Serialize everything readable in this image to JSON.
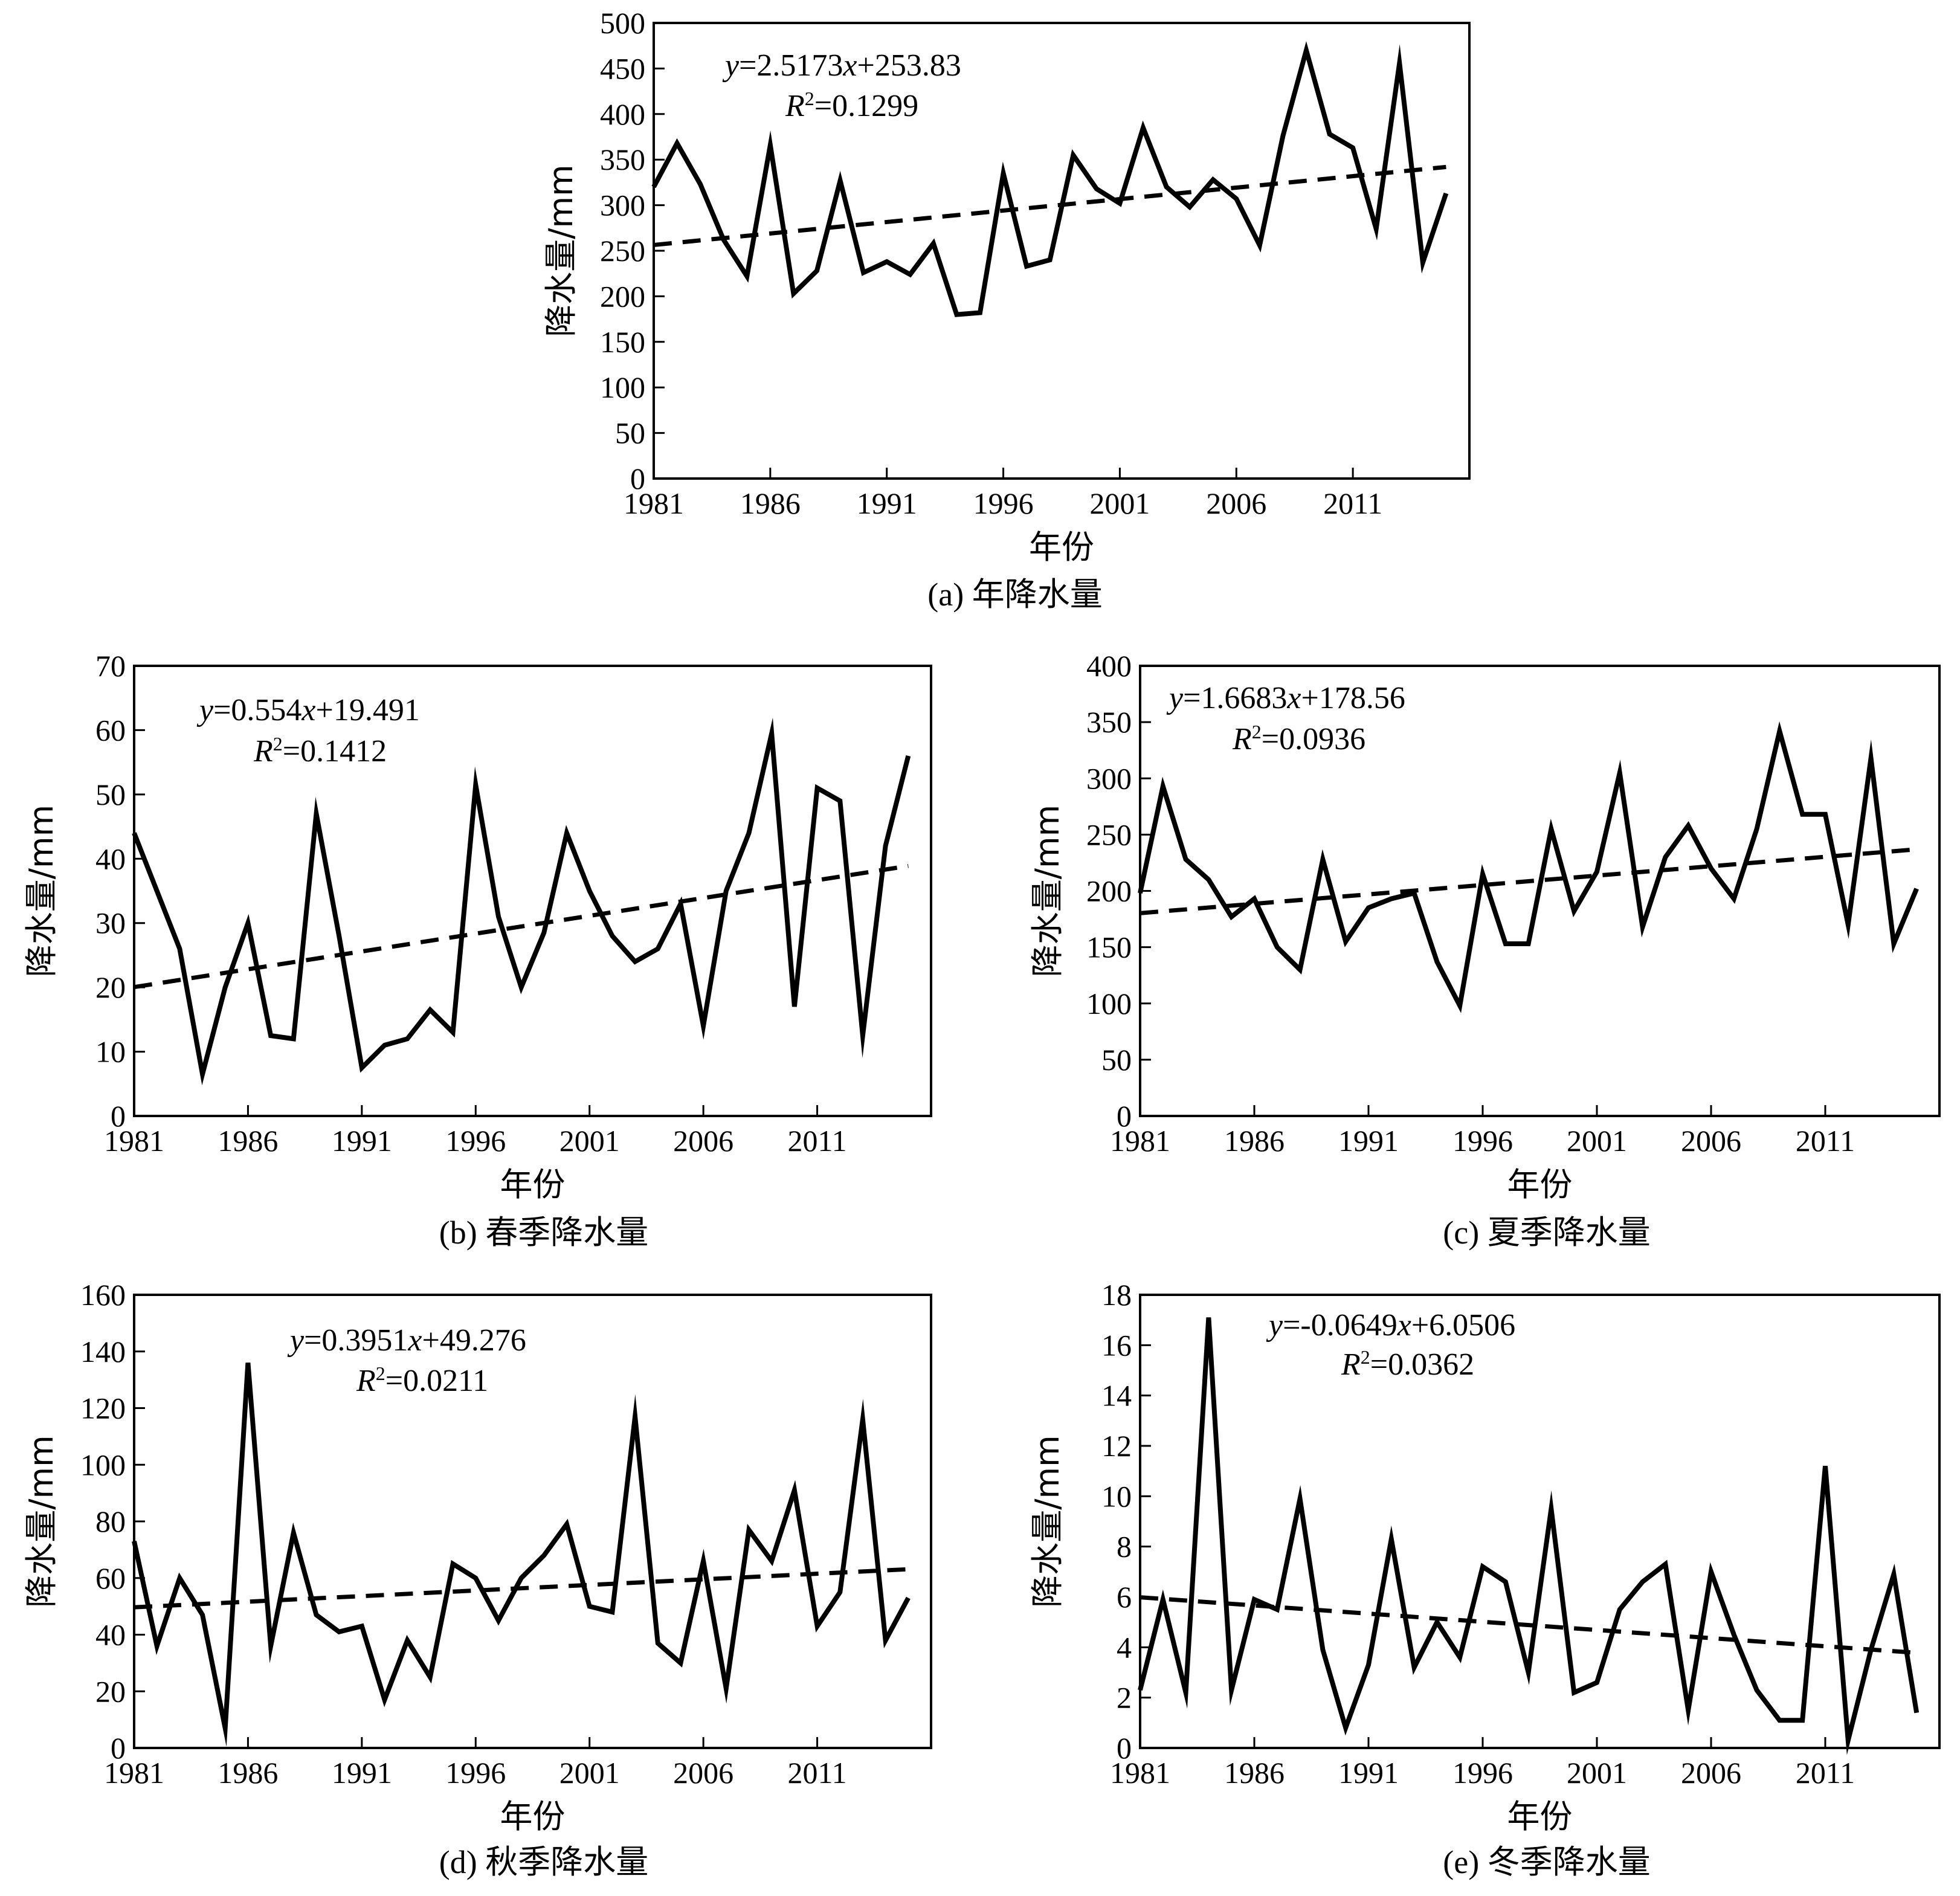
{
  "chart_data": [
    {
      "id": "a",
      "type": "line",
      "caption": "(a) 年降水量",
      "xlabel": "年份",
      "ylabel": "降水量/mm",
      "xlim": [
        1981,
        2016
      ],
      "xticks": [
        1981,
        1986,
        1991,
        1996,
        2001,
        2006,
        2011
      ],
      "ylim": [
        0,
        500
      ],
      "yticks": [
        0,
        50,
        100,
        150,
        200,
        250,
        300,
        350,
        400,
        450,
        500
      ],
      "equation": {
        "y": "y",
        "eq1": "=2.5173",
        "x": "x",
        "eq2": "+253.83",
        "r": "R",
        "sup": "2",
        "r2": "=0.1299"
      },
      "trend": {
        "slope": 2.5173,
        "intercept": 253.83
      },
      "series": [
        {
          "x": [
            1981,
            1982,
            1983,
            1984,
            1985,
            1986,
            1987,
            1988,
            1989,
            1990,
            1991,
            1992,
            1993,
            1994,
            1995,
            1996,
            1997,
            1998,
            1999,
            2000,
            2001,
            2002,
            2003,
            2004,
            2005,
            2006,
            2007,
            2008,
            2009,
            2010,
            2011,
            2012,
            2013,
            2014,
            2015
          ],
          "values": [
            320,
            368,
            323,
            262,
            222,
            366,
            203,
            228,
            327,
            226,
            238,
            224,
            258,
            180,
            182,
            335,
            233,
            240,
            355,
            318,
            302,
            385,
            320,
            298,
            328,
            307,
            256,
            376,
            470,
            378,
            363,
            274,
            456,
            237,
            313
          ]
        }
      ]
    },
    {
      "id": "b",
      "type": "line",
      "caption": "(b) 春季降水量",
      "xlabel": "年份",
      "ylabel": "降水量/mm",
      "xlim": [
        1981,
        2016
      ],
      "xticks": [
        1981,
        1986,
        1991,
        1996,
        2001,
        2006,
        2011
      ],
      "ylim": [
        0,
        70
      ],
      "yticks": [
        0,
        10,
        20,
        30,
        40,
        50,
        60,
        70
      ],
      "equation": {
        "y": "y",
        "eq1": "=0.554",
        "x": "x",
        "eq2": "+19.491",
        "r": "R",
        "sup": "2",
        "r2": "=0.1412"
      },
      "trend": {
        "slope": 0.554,
        "intercept": 19.491
      },
      "series": [
        {
          "x": [
            1981,
            1982,
            1983,
            1984,
            1985,
            1986,
            1987,
            1988,
            1989,
            1990,
            1991,
            1992,
            1993,
            1994,
            1995,
            1996,
            1997,
            1998,
            1999,
            2000,
            2001,
            2002,
            2003,
            2004,
            2005,
            2006,
            2007,
            2008,
            2009,
            2010,
            2011,
            2012,
            2013,
            2014,
            2015
          ],
          "values": [
            44,
            35,
            26,
            6.5,
            20,
            30,
            12.5,
            12,
            47,
            28,
            7.5,
            11,
            12,
            16.5,
            13,
            51.5,
            31,
            20,
            28.5,
            44,
            35,
            28,
            24,
            26,
            33,
            14,
            35,
            44,
            59.5,
            17,
            51,
            49,
            12.5,
            42,
            56
          ]
        }
      ]
    },
    {
      "id": "c",
      "type": "line",
      "caption": "(c) 夏季降水量",
      "xlabel": "年份",
      "ylabel": "降水量/mm",
      "xlim": [
        1981,
        2016
      ],
      "xticks": [
        1981,
        1986,
        1991,
        1996,
        2001,
        2006,
        2011
      ],
      "ylim": [
        0,
        400
      ],
      "yticks": [
        0,
        50,
        100,
        150,
        200,
        250,
        300,
        350,
        400
      ],
      "equation": {
        "y": "y",
        "eq1": "=1.6683",
        "x": "x",
        "eq2": "+178.56",
        "r": "R",
        "sup": "2",
        "r2": "=0.0936"
      },
      "trend": {
        "slope": 1.6683,
        "intercept": 178.56
      },
      "series": [
        {
          "x": [
            1981,
            1982,
            1983,
            1984,
            1985,
            1986,
            1987,
            1988,
            1989,
            1990,
            1991,
            1992,
            1993,
            1994,
            1995,
            1996,
            1997,
            1998,
            1999,
            2000,
            2001,
            2002,
            2003,
            2004,
            2005,
            2006,
            2007,
            2008,
            2009,
            2010,
            2011,
            2012,
            2013,
            2014,
            2015
          ],
          "values": [
            198,
            293,
            228,
            210,
            177,
            193,
            150,
            130,
            228,
            155,
            185,
            193,
            198,
            137,
            98,
            215,
            153,
            153,
            255,
            182,
            217,
            305,
            168,
            230,
            258,
            220,
            193,
            255,
            342,
            268,
            268,
            170,
            318,
            153,
            202
          ]
        }
      ]
    },
    {
      "id": "d",
      "type": "line",
      "caption": "(d) 秋季降水量",
      "xlabel": "年份",
      "ylabel": "降水量/mm",
      "xlim": [
        1981,
        2016
      ],
      "xticks": [
        1981,
        1986,
        1991,
        1996,
        2001,
        2006,
        2011
      ],
      "ylim": [
        0,
        160
      ],
      "yticks": [
        0,
        20,
        40,
        60,
        80,
        100,
        120,
        140,
        160
      ],
      "equation": {
        "y": "y",
        "eq1": "=0.3951",
        "x": "x",
        "eq2": "+49.276",
        "r": "R",
        "sup": "2",
        "r2": "=0.0211"
      },
      "trend": {
        "slope": 0.3951,
        "intercept": 49.276
      },
      "series": [
        {
          "x": [
            1981,
            1982,
            1983,
            1984,
            1985,
            1986,
            1987,
            1988,
            1989,
            1990,
            1991,
            1992,
            1993,
            1994,
            1995,
            1996,
            1997,
            1998,
            1999,
            2000,
            2001,
            2002,
            2003,
            2004,
            2005,
            2006,
            2007,
            2008,
            2009,
            2010,
            2011,
            2012,
            2013,
            2014,
            2015
          ],
          "values": [
            73,
            36,
            60,
            47,
            7,
            136,
            36,
            76,
            47,
            41,
            43,
            17,
            38,
            25,
            65,
            60,
            45,
            60,
            68,
            79,
            50,
            48,
            117,
            37,
            30,
            66,
            21,
            77,
            66,
            91,
            43,
            55,
            116,
            38,
            53
          ]
        }
      ]
    },
    {
      "id": "e",
      "type": "line",
      "caption": "(e) 冬季降水量",
      "xlabel": "年份",
      "ylabel": "降水量/mm",
      "xlim": [
        1981,
        2016
      ],
      "xticks": [
        1981,
        1986,
        1991,
        1996,
        2001,
        2006,
        2011
      ],
      "ylim": [
        0,
        18
      ],
      "yticks": [
        0,
        2,
        4,
        6,
        8,
        10,
        12,
        14,
        16,
        18
      ],
      "equation": {
        "y": "y",
        "eq1": "=-0.0649",
        "x": "x",
        "eq2": "+6.0506",
        "r": "R",
        "sup": "2",
        "r2": "=0.0362"
      },
      "trend": {
        "slope": -0.0649,
        "intercept": 6.0506
      },
      "series": [
        {
          "x": [
            1981,
            1982,
            1983,
            1984,
            1985,
            1986,
            1987,
            1988,
            1989,
            1990,
            1991,
            1992,
            1993,
            1994,
            1995,
            1996,
            1997,
            1998,
            1999,
            2000,
            2001,
            2002,
            2003,
            2004,
            2005,
            2006,
            2007,
            2008,
            2009,
            2010,
            2011,
            2012,
            2013,
            2014,
            2015
          ],
          "values": [
            2.3,
            5.9,
            2.2,
            17.1,
            2.3,
            5.9,
            5.5,
            9.9,
            3.9,
            0.8,
            3.3,
            8.3,
            3.2,
            5.0,
            3.6,
            7.2,
            6.6,
            3.0,
            9.5,
            2.2,
            2.6,
            5.5,
            6.6,
            7.3,
            1.5,
            7.0,
            4.5,
            2.3,
            1.1,
            1.1,
            11.2,
            0.3,
            3.9,
            6.9,
            1.4
          ]
        }
      ]
    }
  ]
}
